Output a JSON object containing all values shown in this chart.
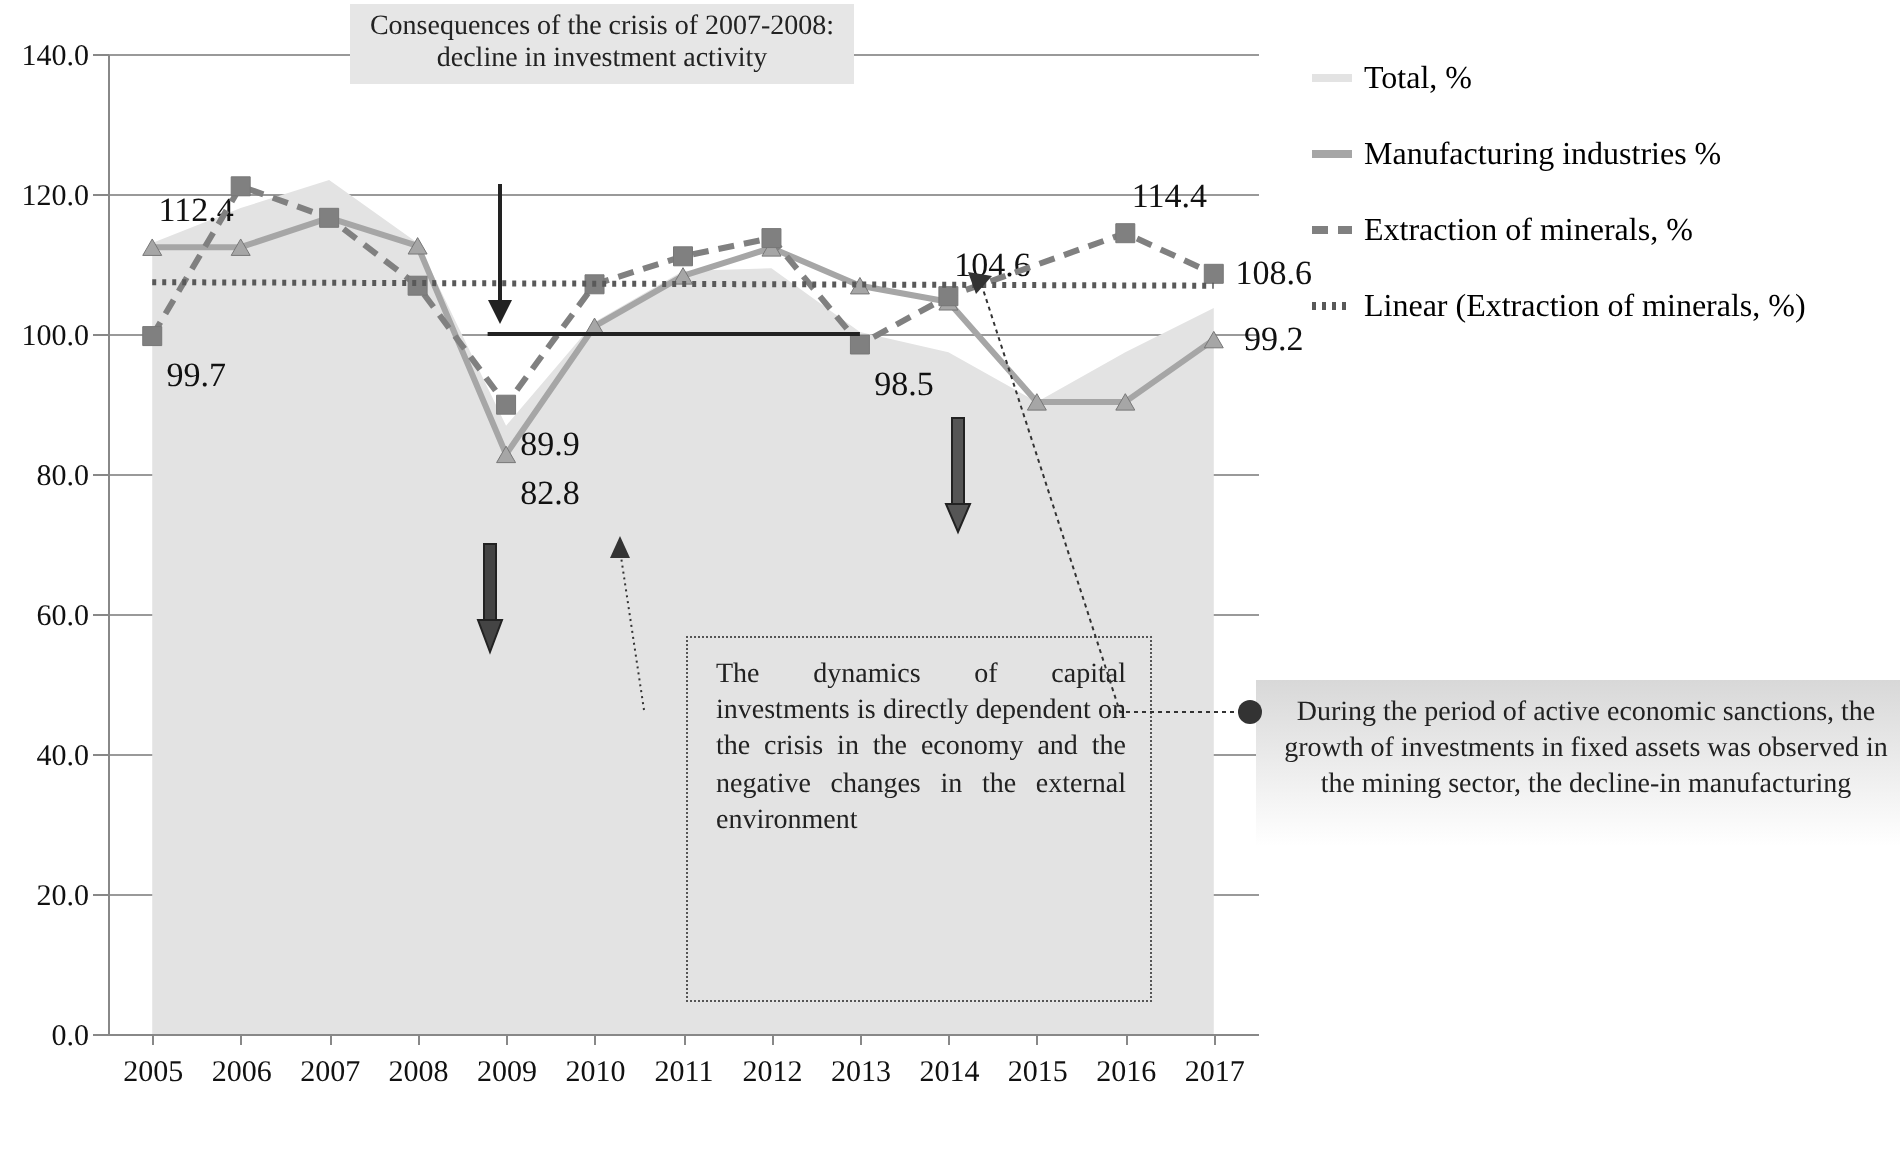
{
  "chart_data": {
    "type": "line",
    "categories": [
      "2005",
      "2006",
      "2007",
      "2008",
      "2009",
      "2010",
      "2011",
      "2012",
      "2013",
      "2014",
      "2015",
      "2016",
      "2017"
    ],
    "series": [
      {
        "name": "Total, %",
        "type": "area",
        "color": "#e3e3e3",
        "values": [
          113,
          118,
          122,
          113,
          86.9,
          101.7,
          109,
          109.4,
          100.3,
          97.4,
          90.3,
          97.4,
          103.7
        ]
      },
      {
        "name": "Manufacturing industries %",
        "color": "#a6a6a6",
        "marker": "triangle",
        "line_style": "solid",
        "values": [
          112.4,
          112.4,
          116.6,
          112.6,
          82.8,
          101.1,
          108.3,
          112.3,
          106.9,
          104.6,
          90.3,
          90.3,
          99.2
        ],
        "value_labels": [
          "112.4",
          null,
          null,
          null,
          "82.8",
          null,
          null,
          null,
          null,
          "104.6",
          null,
          null,
          "99.2"
        ]
      },
      {
        "name": "Extraction of minerals, %",
        "color": "#808080",
        "marker": "square",
        "line_style": "dashed",
        "values": [
          99.7,
          121.1,
          116.6,
          106.9,
          89.9,
          107.1,
          111.1,
          113.7,
          98.5,
          105.4,
          null,
          114.4,
          108.6
        ],
        "value_labels": [
          "99.7",
          null,
          null,
          null,
          "89.9",
          null,
          null,
          null,
          "98.5",
          null,
          null,
          "114.4",
          "108.6"
        ]
      },
      {
        "name": "Linear (Extraction of minerals, %)",
        "color": "#595959",
        "marker": "none",
        "line_style": "dotted",
        "values": [
          107.4,
          null,
          null,
          null,
          null,
          null,
          null,
          null,
          null,
          null,
          null,
          null,
          106.9
        ]
      }
    ],
    "ylim": [
      0,
      140
    ],
    "yticks": [
      {
        "value": 0,
        "label": "0.0"
      },
      {
        "value": 20,
        "label": "20.0"
      },
      {
        "value": 40,
        "label": "40.0"
      },
      {
        "value": 60,
        "label": "60.0"
      },
      {
        "value": 80,
        "label": "80.0"
      },
      {
        "value": 100,
        "label": "100.0"
      },
      {
        "value": 120,
        "label": "120.0"
      },
      {
        "value": 140,
        "label": "140.0"
      }
    ],
    "grid": "y",
    "ref_lines": [
      {
        "axis": "y",
        "value": 100,
        "color": "#222222"
      }
    ],
    "legend": "right",
    "annotations": [
      "Consequences of the crisis of 2007-2008: decline in investment activity",
      "The dynamics of capital investments is directly dependent on the crisis in the economy and the negative changes in the external environment",
      "During the period of active economic sanctions, the growth of investments in fixed assets was observed in the mining sector, the decline-in manufacturing"
    ]
  }
}
